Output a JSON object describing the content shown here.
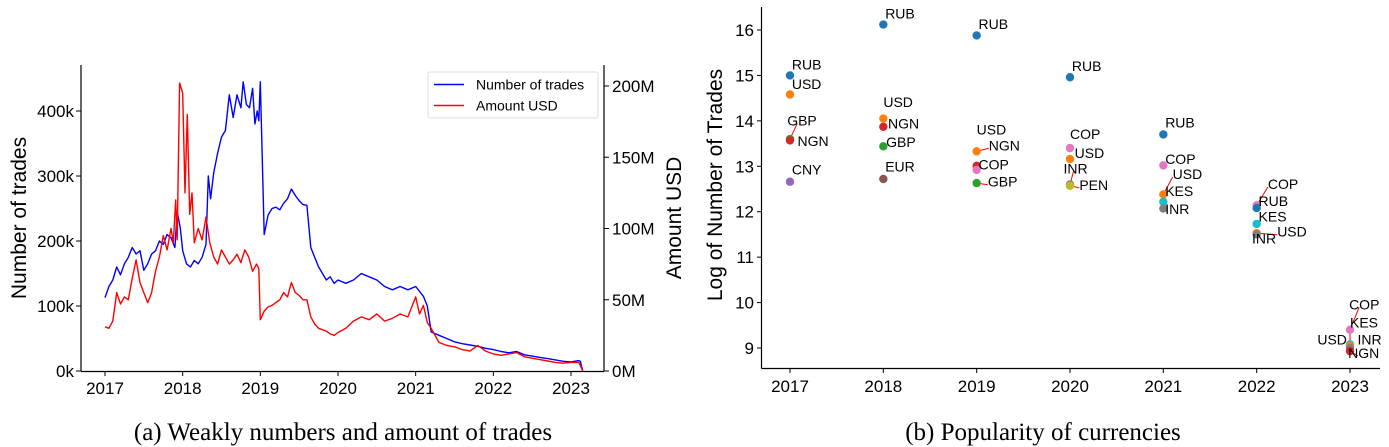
{
  "chart_data": [
    {
      "type": "line",
      "id": "weekly-trades",
      "caption": "(a) Weakly numbers and amount of trades",
      "xlabel": "",
      "ylabel": "Number of trades",
      "y2label": "Amount USD",
      "xlim": [
        2016.7,
        2023.4
      ],
      "ylim": [
        0,
        470000
      ],
      "y2lim": [
        0,
        213000000
      ],
      "xticks": [
        2017,
        2018,
        2019,
        2020,
        2021,
        2022,
        2023
      ],
      "xtick_labels": [
        "2017",
        "2018",
        "2019",
        "2020",
        "2021",
        "2022",
        "2023"
      ],
      "yticks": [
        0,
        100000,
        200000,
        300000,
        400000
      ],
      "ytick_labels": [
        "0k",
        "100k",
        "200k",
        "300k",
        "400k"
      ],
      "y2ticks": [
        0,
        50000000,
        100000000,
        150000000,
        200000000
      ],
      "y2tick_labels": [
        "0M",
        "50M",
        "100M",
        "150M",
        "200M"
      ],
      "grid": false,
      "legend_position": "top-right",
      "series": [
        {
          "name": "Number of trades",
          "axis": "left",
          "color": "#0000ff",
          "x": [
            2017.0,
            2017.05,
            2017.1,
            2017.15,
            2017.2,
            2017.25,
            2017.3,
            2017.35,
            2017.4,
            2017.45,
            2017.5,
            2017.55,
            2017.6,
            2017.65,
            2017.7,
            2017.75,
            2017.8,
            2017.85,
            2017.9,
            2017.93,
            2017.97,
            2018.0,
            2018.05,
            2018.1,
            2018.15,
            2018.2,
            2018.25,
            2018.3,
            2018.33,
            2018.36,
            2018.4,
            2018.45,
            2018.5,
            2018.55,
            2018.6,
            2018.65,
            2018.7,
            2018.75,
            2018.78,
            2018.82,
            2018.86,
            2018.9,
            2018.93,
            2018.96,
            2018.98,
            2019.0,
            2019.05,
            2019.1,
            2019.15,
            2019.2,
            2019.25,
            2019.3,
            2019.35,
            2019.4,
            2019.45,
            2019.5,
            2019.55,
            2019.6,
            2019.65,
            2019.7,
            2019.75,
            2019.8,
            2019.85,
            2019.9,
            2019.95,
            2020.0,
            2020.1,
            2020.2,
            2020.3,
            2020.4,
            2020.5,
            2020.6,
            2020.7,
            2020.8,
            2020.9,
            2021.0,
            2021.1,
            2021.15,
            2021.2,
            2021.3,
            2021.4,
            2021.5,
            2021.6,
            2021.7,
            2021.8,
            2021.9,
            2022.0,
            2022.1,
            2022.2,
            2022.3,
            2022.4,
            2022.5,
            2022.6,
            2022.7,
            2022.8,
            2022.9,
            2023.0,
            2023.1,
            2023.12,
            2023.15
          ],
          "values": [
            113000,
            130000,
            140000,
            160000,
            148000,
            165000,
            175000,
            190000,
            180000,
            185000,
            155000,
            165000,
            180000,
            185000,
            200000,
            195000,
            210000,
            205000,
            190000,
            245000,
            220000,
            185000,
            165000,
            160000,
            170000,
            165000,
            175000,
            195000,
            300000,
            265000,
            305000,
            335000,
            360000,
            370000,
            425000,
            390000,
            425000,
            405000,
            445000,
            410000,
            405000,
            435000,
            380000,
            400000,
            385000,
            445000,
            210000,
            240000,
            250000,
            252000,
            248000,
            258000,
            265000,
            280000,
            270000,
            262000,
            256000,
            255000,
            190000,
            175000,
            160000,
            150000,
            140000,
            145000,
            135000,
            140000,
            135000,
            140000,
            150000,
            145000,
            140000,
            130000,
            125000,
            130000,
            125000,
            130000,
            115000,
            100000,
            60000,
            55000,
            50000,
            45000,
            42000,
            40000,
            38000,
            35000,
            33000,
            30000,
            28000,
            30000,
            25000,
            23000,
            21000,
            19000,
            17000,
            15000,
            14000,
            16000,
            15000,
            0
          ]
        },
        {
          "name": "Amount USD",
          "axis": "right",
          "color": "#ff0000",
          "x": [
            2017.0,
            2017.05,
            2017.1,
            2017.15,
            2017.2,
            2017.25,
            2017.3,
            2017.35,
            2017.4,
            2017.45,
            2017.5,
            2017.55,
            2017.6,
            2017.65,
            2017.7,
            2017.75,
            2017.8,
            2017.85,
            2017.88,
            2017.91,
            2017.93,
            2017.96,
            2018.0,
            2018.03,
            2018.06,
            2018.09,
            2018.12,
            2018.15,
            2018.2,
            2018.25,
            2018.3,
            2018.35,
            2018.4,
            2018.45,
            2018.5,
            2018.55,
            2018.6,
            2018.65,
            2018.7,
            2018.75,
            2018.8,
            2018.85,
            2018.9,
            2018.95,
            2018.98,
            2019.0,
            2019.05,
            2019.1,
            2019.15,
            2019.2,
            2019.25,
            2019.3,
            2019.35,
            2019.4,
            2019.45,
            2019.5,
            2019.55,
            2019.6,
            2019.65,
            2019.7,
            2019.75,
            2019.8,
            2019.85,
            2019.9,
            2019.95,
            2020.0,
            2020.1,
            2020.2,
            2020.3,
            2020.4,
            2020.5,
            2020.6,
            2020.7,
            2020.8,
            2020.9,
            2021.0,
            2021.05,
            2021.1,
            2021.15,
            2021.2,
            2021.3,
            2021.4,
            2021.5,
            2021.6,
            2021.7,
            2021.8,
            2021.9,
            2022.0,
            2022.1,
            2022.2,
            2022.3,
            2022.4,
            2022.5,
            2022.6,
            2022.7,
            2022.8,
            2022.9,
            2023.0,
            2023.1,
            2023.12,
            2023.15
          ],
          "values": [
            31000000,
            30000000,
            35000000,
            55000000,
            47000000,
            52000000,
            50000000,
            65000000,
            78000000,
            62000000,
            55000000,
            48000000,
            55000000,
            70000000,
            80000000,
            95000000,
            85000000,
            100000000,
            90000000,
            120000000,
            92000000,
            202000000,
            195000000,
            125000000,
            180000000,
            110000000,
            125000000,
            90000000,
            100000000,
            92000000,
            108000000,
            90000000,
            80000000,
            75000000,
            85000000,
            80000000,
            75000000,
            78000000,
            82000000,
            76000000,
            85000000,
            80000000,
            70000000,
            75000000,
            72000000,
            36000000,
            42000000,
            45000000,
            46000000,
            48000000,
            50000000,
            55000000,
            52000000,
            62000000,
            55000000,
            53000000,
            50000000,
            50000000,
            38000000,
            33000000,
            30000000,
            29000000,
            28000000,
            26000000,
            25000000,
            27000000,
            30000000,
            35000000,
            38000000,
            36000000,
            40000000,
            35000000,
            37000000,
            40000000,
            38000000,
            52000000,
            40000000,
            46000000,
            34000000,
            30000000,
            20000000,
            18000000,
            17000000,
            15000000,
            14000000,
            18000000,
            14000000,
            12000000,
            11000000,
            12000000,
            13000000,
            10000000,
            9000000,
            8000000,
            7000000,
            6000000,
            5500000,
            6000000,
            6000000,
            4000000,
            0
          ]
        }
      ]
    },
    {
      "type": "scatter",
      "id": "currency-popularity",
      "caption": "(b) Popularity of currencies",
      "xlabel": "",
      "ylabel": "Log of Number of Trades",
      "xlim": [
        2016.7,
        2023.3
      ],
      "ylim": [
        8.6,
        16.5
      ],
      "xticks": [
        2017,
        2018,
        2019,
        2020,
        2021,
        2022,
        2023
      ],
      "xtick_labels": [
        "2017",
        "2018",
        "2019",
        "2020",
        "2021",
        "2022",
        "2023"
      ],
      "yticks": [
        9,
        10,
        11,
        12,
        13,
        14,
        15,
        16
      ],
      "ytick_labels": [
        "9",
        "10",
        "11",
        "12",
        "13",
        "14",
        "15",
        "16"
      ],
      "grid": false,
      "colors": {
        "RUB": "#1f77b4",
        "USD": "#ff7f0e",
        "GBP": "#2ca02c",
        "NGN": "#d62728",
        "CNY": "#9467bd",
        "EUR": "#8c564b",
        "COP": "#e377c2",
        "INR": "#7f7f7f",
        "PEN": "#bcbd22",
        "KES": "#17becf"
      },
      "points": [
        {
          "year": 2017,
          "currency": "RUB",
          "value": 15.0
        },
        {
          "year": 2017,
          "currency": "USD",
          "value": 14.58
        },
        {
          "year": 2017,
          "currency": "GBP",
          "value": 13.6
        },
        {
          "year": 2017,
          "currency": "NGN",
          "value": 13.57
        },
        {
          "year": 2017,
          "currency": "CNY",
          "value": 12.66
        },
        {
          "year": 2018,
          "currency": "RUB",
          "value": 16.12
        },
        {
          "year": 2018,
          "currency": "USD",
          "value": 14.05
        },
        {
          "year": 2018,
          "currency": "NGN",
          "value": 13.87
        },
        {
          "year": 2018,
          "currency": "GBP",
          "value": 13.44
        },
        {
          "year": 2018,
          "currency": "EUR",
          "value": 12.72
        },
        {
          "year": 2019,
          "currency": "RUB",
          "value": 15.88
        },
        {
          "year": 2019,
          "currency": "USD",
          "value": 13.33
        },
        {
          "year": 2019,
          "currency": "NGN",
          "value": 13.01
        },
        {
          "year": 2019,
          "currency": "COP",
          "value": 12.92
        },
        {
          "year": 2019,
          "currency": "GBP",
          "value": 12.63
        },
        {
          "year": 2020,
          "currency": "RUB",
          "value": 14.96
        },
        {
          "year": 2020,
          "currency": "COP",
          "value": 13.4
        },
        {
          "year": 2020,
          "currency": "USD",
          "value": 13.16
        },
        {
          "year": 2020,
          "currency": "INR",
          "value": 12.6
        },
        {
          "year": 2020,
          "currency": "PEN",
          "value": 12.57
        },
        {
          "year": 2021,
          "currency": "RUB",
          "value": 13.7
        },
        {
          "year": 2021,
          "currency": "COP",
          "value": 13.02
        },
        {
          "year": 2021,
          "currency": "USD",
          "value": 12.38
        },
        {
          "year": 2021,
          "currency": "KES",
          "value": 12.22
        },
        {
          "year": 2021,
          "currency": "INR",
          "value": 12.07
        },
        {
          "year": 2022,
          "currency": "COP",
          "value": 12.14
        },
        {
          "year": 2022,
          "currency": "RUB",
          "value": 12.08
        },
        {
          "year": 2022,
          "currency": "KES",
          "value": 11.73
        },
        {
          "year": 2022,
          "currency": "USD",
          "value": 11.53
        },
        {
          "year": 2022,
          "currency": "INR",
          "value": 11.5
        },
        {
          "year": 2023,
          "currency": "COP",
          "value": 9.4
        },
        {
          "year": 2023,
          "currency": "KES",
          "value": 9.08
        },
        {
          "year": 2023,
          "currency": "USD",
          "value": 9.05
        },
        {
          "year": 2023,
          "currency": "INR",
          "value": 9.0
        },
        {
          "year": 2023,
          "currency": "NGN",
          "value": 8.93
        }
      ],
      "labels": [
        {
          "year": 2017,
          "text": "RUB",
          "value": 15.13,
          "dx": 0.02,
          "leader": false
        },
        {
          "year": 2017,
          "text": "USD",
          "value": 14.7,
          "dx": 0.02,
          "leader": false
        },
        {
          "year": 2017,
          "text": "GBP",
          "value": 13.9,
          "dx": -0.03,
          "leader": true,
          "leader_from": 13.6
        },
        {
          "year": 2017,
          "text": "NGN",
          "value": 13.45,
          "dx": 0.08,
          "leader": false
        },
        {
          "year": 2017,
          "text": "CNY",
          "value": 12.82,
          "dx": 0.02,
          "leader": false
        },
        {
          "year": 2018,
          "text": "RUB",
          "value": 16.25,
          "dx": 0.02,
          "leader": false
        },
        {
          "year": 2018,
          "text": "USD",
          "value": 14.3,
          "dx": 0.0,
          "leader": false
        },
        {
          "year": 2018,
          "text": "NGN",
          "value": 13.83,
          "dx": 0.05,
          "leader": false
        },
        {
          "year": 2018,
          "text": "GBP",
          "value": 13.43,
          "dx": 0.03,
          "leader": false
        },
        {
          "year": 2018,
          "text": "EUR",
          "value": 12.88,
          "dx": 0.02,
          "leader": false
        },
        {
          "year": 2019,
          "text": "RUB",
          "value": 16.02,
          "dx": 0.02,
          "leader": false
        },
        {
          "year": 2019,
          "text": "USD",
          "value": 13.7,
          "dx": 0.0,
          "leader": false
        },
        {
          "year": 2019,
          "text": "NGN",
          "value": 13.35,
          "dx": 0.13,
          "leader": true,
          "leader_from": 13.33
        },
        {
          "year": 2019,
          "text": "COP",
          "value": 12.93,
          "dx": 0.02,
          "leader": true,
          "leader_from": 13.01
        },
        {
          "year": 2019,
          "text": "GBP",
          "value": 12.55,
          "dx": 0.12,
          "leader": true,
          "leader_from": 12.63
        },
        {
          "year": 2020,
          "text": "RUB",
          "value": 15.1,
          "dx": 0.02,
          "leader": false
        },
        {
          "year": 2020,
          "text": "COP",
          "value": 13.6,
          "dx": 0.0,
          "leader": false
        },
        {
          "year": 2020,
          "text": "USD",
          "value": 13.18,
          "dx": 0.05,
          "leader": false
        },
        {
          "year": 2020,
          "text": "INR",
          "value": 12.84,
          "dx": -0.07,
          "leader": true,
          "leader_from": 12.6
        },
        {
          "year": 2020,
          "text": "PEN",
          "value": 12.48,
          "dx": 0.1,
          "leader": true,
          "leader_from": 12.57
        },
        {
          "year": 2021,
          "text": "RUB",
          "value": 13.85,
          "dx": 0.02,
          "leader": false
        },
        {
          "year": 2021,
          "text": "COP",
          "value": 13.05,
          "dx": 0.02,
          "leader": false
        },
        {
          "year": 2021,
          "text": "USD",
          "value": 12.72,
          "dx": 0.1,
          "leader": true,
          "leader_from": 12.38
        },
        {
          "year": 2021,
          "text": "KES",
          "value": 12.35,
          "dx": 0.02,
          "leader": false
        },
        {
          "year": 2021,
          "text": "INR",
          "value": 11.95,
          "dx": 0.02,
          "leader": false
        },
        {
          "year": 2022,
          "text": "COP",
          "value": 12.5,
          "dx": 0.12,
          "leader": true,
          "leader_from": 12.14
        },
        {
          "year": 2022,
          "text": "RUB",
          "value": 12.13,
          "dx": 0.02,
          "leader": false
        },
        {
          "year": 2022,
          "text": "KES",
          "value": 11.79,
          "dx": 0.02,
          "leader": false
        },
        {
          "year": 2022,
          "text": "USD",
          "value": 11.45,
          "dx": 0.22,
          "leader": true,
          "leader_from": 11.53
        },
        {
          "year": 2022,
          "text": "INR",
          "value": 11.3,
          "dx": -0.05,
          "leader": false
        },
        {
          "year": 2023,
          "text": "COP",
          "value": 9.85,
          "dx": -0.01,
          "leader": true,
          "leader_from": 9.4
        },
        {
          "year": 2023,
          "text": "KES",
          "value": 9.45,
          "dx": 0.0,
          "leader": true,
          "leader_from": 9.08
        },
        {
          "year": 2023,
          "text": "USD",
          "value": 9.08,
          "dx": -0.35,
          "leader": false
        },
        {
          "year": 2023,
          "text": "INR",
          "value": 9.08,
          "dx": 0.08,
          "leader": false
        },
        {
          "year": 2023,
          "text": "NGN",
          "value": 8.78,
          "dx": -0.02,
          "leader": true,
          "leader_from": 8.93
        }
      ]
    }
  ]
}
